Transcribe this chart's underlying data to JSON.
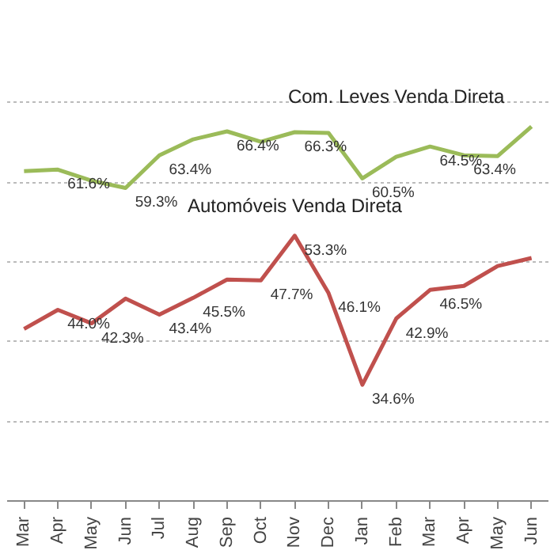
{
  "chart_data": {
    "type": "line",
    "categories": [
      "Mar",
      "Apr",
      "May",
      "Jun",
      "Jul",
      "Aug",
      "Sep",
      "Oct",
      "Nov",
      "Dec",
      "Jan",
      "Feb",
      "Mar",
      "Apr",
      "May",
      "Jun"
    ],
    "series": [
      {
        "name": "Com. Leves Venda Direta",
        "color": "#9bbb59",
        "values": [
          61.4,
          61.6,
          60.2,
          59.3,
          63.4,
          65.4,
          66.4,
          65.1,
          66.3,
          66.2,
          60.5,
          63.2,
          64.5,
          63.4,
          63.3,
          67.0
        ],
        "value_labels": [
          null,
          "61.6%",
          null,
          "59.3%",
          "63.4%",
          null,
          "66.4%",
          null,
          "66.3%",
          null,
          "60.5%",
          null,
          "64.5%",
          "63.4%",
          null,
          null
        ]
      },
      {
        "name": "Automóveis Venda Direta",
        "color": "#c0504d",
        "values": [
          41.6,
          44.0,
          42.3,
          45.4,
          43.4,
          45.5,
          47.8,
          47.7,
          53.3,
          46.1,
          34.6,
          42.9,
          46.5,
          47.0,
          49.5,
          50.5
        ],
        "value_labels": [
          null,
          "44.0%",
          "42.3%",
          null,
          "43.4%",
          "45.5%",
          null,
          "47.7%",
          "53.3%",
          "46.1%",
          "34.6%",
          "42.9%",
          "46.5%",
          null,
          null,
          null
        ]
      }
    ],
    "yticks": [
      {
        "value": 20,
        "label": null
      },
      {
        "value": 30,
        "label": null
      },
      {
        "value": 40,
        "label": null
      },
      {
        "value": 50,
        "label": null
      },
      {
        "value": 60,
        "label": null
      },
      {
        "value": 70,
        "label": null
      }
    ],
    "grid": "y",
    "tick_labels": "x",
    "marker": "none",
    "line_style": "solid"
  }
}
